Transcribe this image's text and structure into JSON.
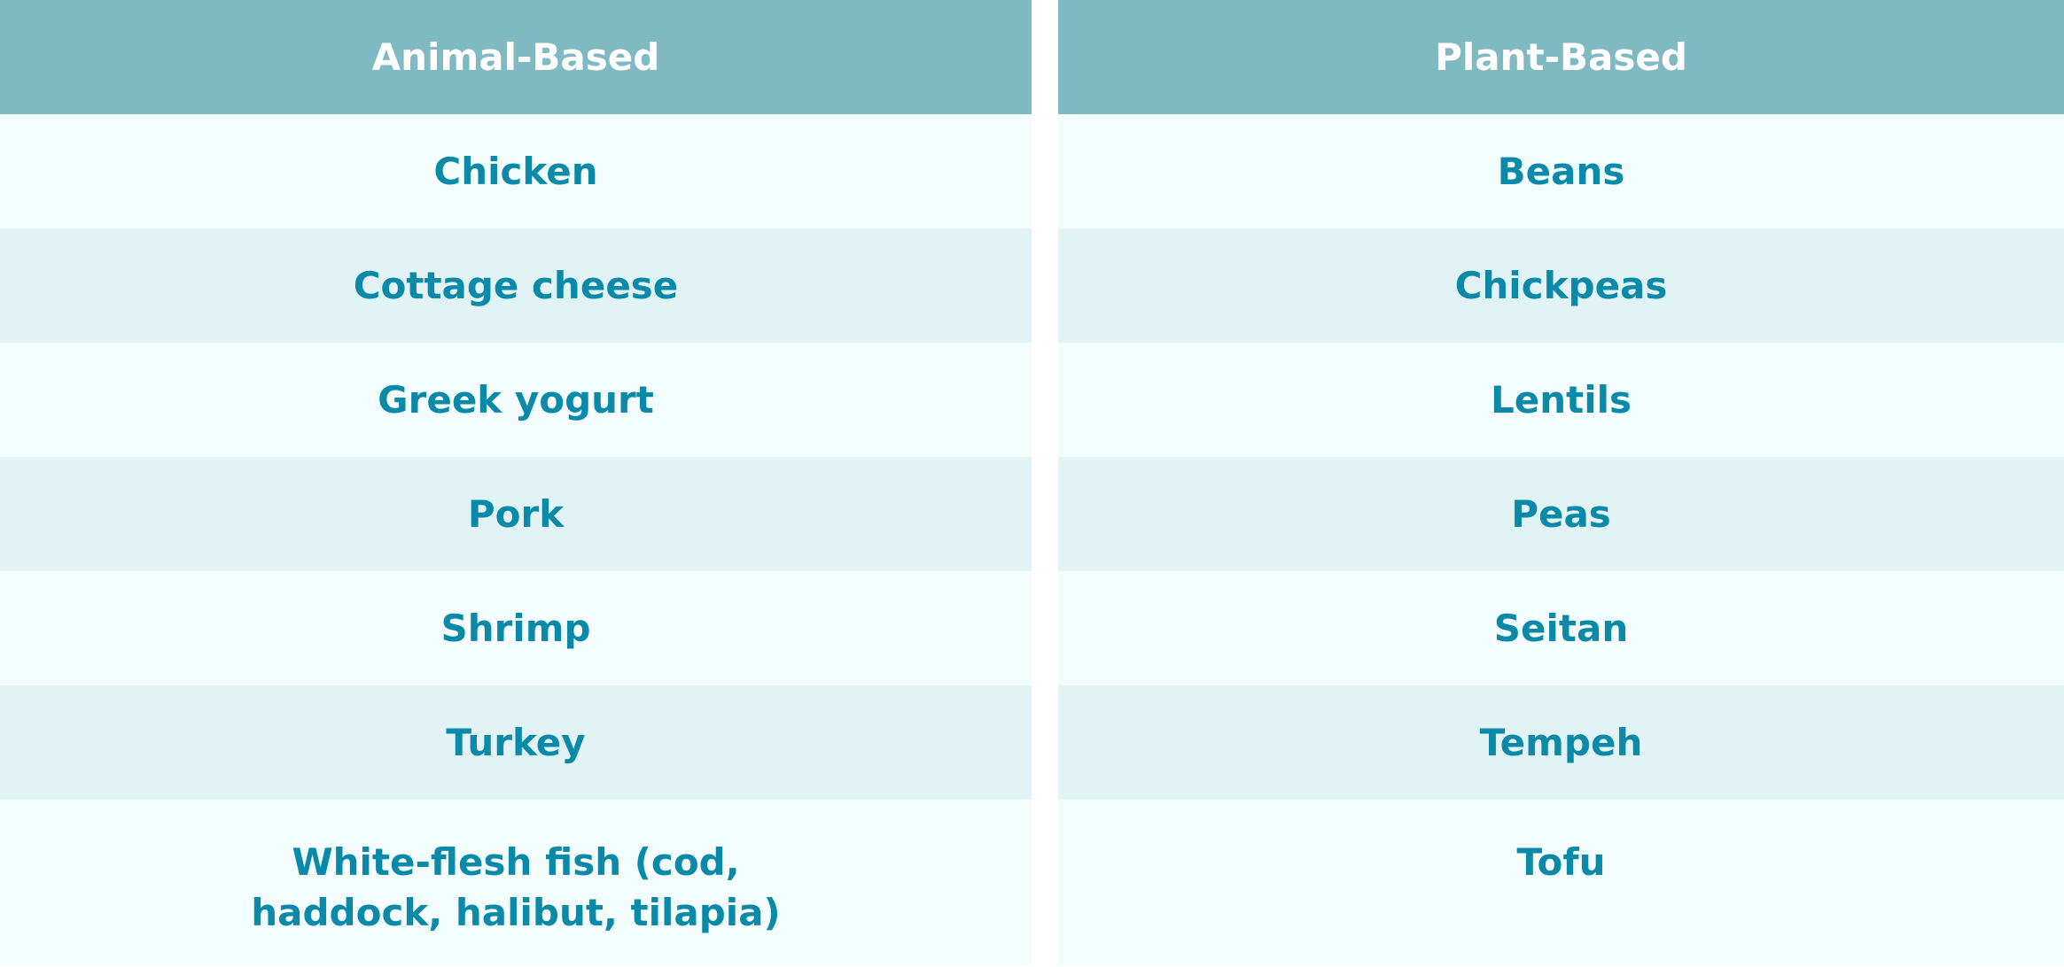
{
  "columns": [
    {
      "header": "Animal-Based",
      "items": [
        "Chicken",
        "Cottage cheese",
        "Greek yogurt",
        "Pork",
        "Shrimp",
        "Turkey"
      ],
      "last_item_line1": "White-flesh fish (cod,",
      "last_item_line2": "haddock, halibut, tilapia)"
    },
    {
      "header": "Plant-Based",
      "items": [
        "Beans",
        "Chickpeas",
        "Lentils",
        "Peas",
        "Seitan",
        "Tempeh",
        "Tofu"
      ]
    }
  ],
  "colors": {
    "header_bg": "#7fb9c2",
    "header_text": "#ffffff",
    "row_light": "#f4fdfe",
    "row_dark": "#e2f3f6",
    "item_text": "#0a8aa8"
  }
}
